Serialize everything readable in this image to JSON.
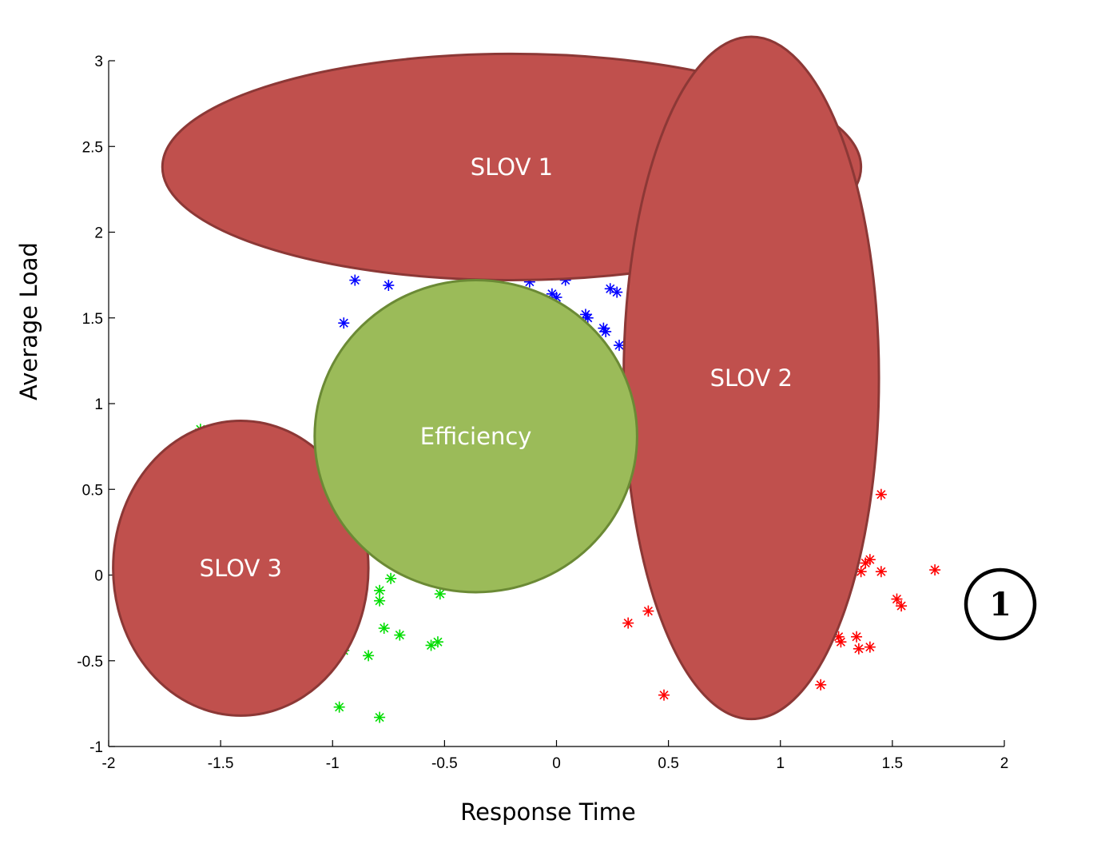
{
  "chart_data": {
    "type": "scatter",
    "xlabel": "Response Time",
    "ylabel": "Average Load",
    "xlim": [
      -2,
      2
    ],
    "ylim": [
      -1,
      3
    ],
    "x_ticks": [
      "-2",
      "-1.5",
      "-1",
      "-0.5",
      "0",
      "0.5",
      "1",
      "1.5",
      "2"
    ],
    "y_ticks": [
      "-1",
      "-0.5",
      "0",
      "0.5",
      "1",
      "1.5",
      "2",
      "2.5",
      "3"
    ],
    "grid": false,
    "series": [
      {
        "color": "#0000ff",
        "marker": "*",
        "points": [
          [
            -0.9,
            1.72
          ],
          [
            -0.75,
            1.69
          ],
          [
            -0.95,
            1.47
          ],
          [
            -0.12,
            1.71
          ],
          [
            -0.02,
            1.64
          ],
          [
            0.0,
            1.62
          ],
          [
            0.04,
            1.72
          ],
          [
            0.13,
            1.52
          ],
          [
            0.14,
            1.5
          ],
          [
            0.21,
            1.44
          ],
          [
            0.22,
            1.42
          ],
          [
            0.24,
            1.67
          ],
          [
            0.27,
            1.65
          ],
          [
            0.28,
            1.34
          ]
        ]
      },
      {
        "color": "#00dd00",
        "marker": "*",
        "points": [
          [
            -1.59,
            0.85
          ],
          [
            -0.74,
            -0.02
          ],
          [
            -0.52,
            -0.11
          ],
          [
            -0.79,
            -0.09
          ],
          [
            -0.79,
            -0.15
          ],
          [
            -0.77,
            -0.31
          ],
          [
            -0.7,
            -0.35
          ],
          [
            -0.56,
            -0.41
          ],
          [
            -0.53,
            -0.39
          ],
          [
            -0.84,
            -0.47
          ],
          [
            -0.97,
            -0.77
          ],
          [
            -0.79,
            -0.83
          ],
          [
            -0.95,
            -0.44
          ]
        ]
      },
      {
        "color": "#ff0000",
        "marker": "*",
        "points": [
          [
            1.45,
            0.47
          ],
          [
            1.4,
            0.09
          ],
          [
            1.38,
            0.07
          ],
          [
            1.36,
            0.02
          ],
          [
            1.45,
            0.02
          ],
          [
            1.69,
            0.03
          ],
          [
            1.52,
            -0.14
          ],
          [
            1.54,
            -0.18
          ],
          [
            1.26,
            -0.36
          ],
          [
            1.27,
            -0.39
          ],
          [
            1.34,
            -0.36
          ],
          [
            1.35,
            -0.43
          ],
          [
            1.4,
            -0.42
          ],
          [
            1.18,
            -0.64
          ],
          [
            0.32,
            -0.28
          ],
          [
            0.41,
            -0.21
          ],
          [
            0.48,
            -0.7
          ]
        ]
      }
    ],
    "annotations": [
      {
        "label": "SLOV 1",
        "shape": "ellipse",
        "fill": "#c0504d",
        "stroke": "#8c3836",
        "center": [
          -0.2,
          2.38
        ],
        "radii": [
          1.56,
          0.66
        ]
      },
      {
        "label": "SLOV 2",
        "shape": "ellipse",
        "fill": "#c0504d",
        "stroke": "#8c3836",
        "center": [
          0.87,
          1.15
        ],
        "radii": [
          0.57,
          1.99
        ]
      },
      {
        "label": "SLOV 3",
        "shape": "ellipse",
        "fill": "#c0504d",
        "stroke": "#8c3836",
        "center": [
          -1.41,
          0.04
        ],
        "radii": [
          0.57,
          0.86
        ]
      },
      {
        "label": "Efficiency",
        "shape": "ellipse",
        "fill": "#9bbb59",
        "stroke": "#6b8a35",
        "center": [
          -0.36,
          0.81
        ],
        "radii": [
          0.72,
          0.91
        ]
      }
    ],
    "badge": "1"
  }
}
